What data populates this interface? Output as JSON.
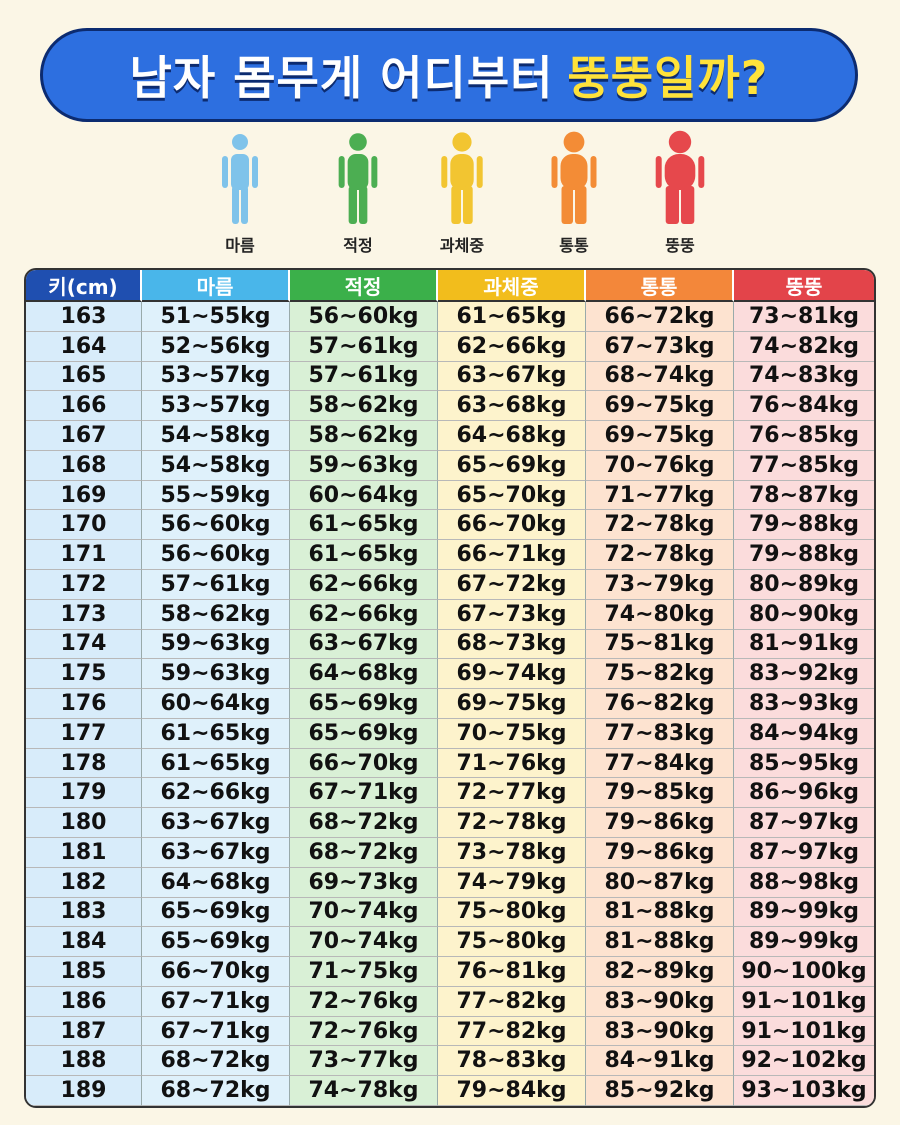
{
  "title": {
    "main": "남자 몸무게 어디부터",
    "highlight": "뚱뚱일까?"
  },
  "figures": [
    {
      "label": "마름",
      "color": "#7fc3ea"
    },
    {
      "label": "적정",
      "color": "#4cae52"
    },
    {
      "label": "과체중",
      "color": "#f2c531"
    },
    {
      "label": "통통",
      "color": "#f38c36"
    },
    {
      "label": "뚱뚱",
      "color": "#e6484c"
    }
  ],
  "table": {
    "headers": [
      "키(cm)",
      "마름",
      "적정",
      "과체중",
      "통통",
      "뚱뚱"
    ],
    "rows": [
      [
        "163",
        "51~55kg",
        "56~60kg",
        "61~65kg",
        "66~72kg",
        "73~81kg"
      ],
      [
        "164",
        "52~56kg",
        "57~61kg",
        "62~66kg",
        "67~73kg",
        "74~82kg"
      ],
      [
        "165",
        "53~57kg",
        "57~61kg",
        "63~67kg",
        "68~74kg",
        "74~83kg"
      ],
      [
        "166",
        "53~57kg",
        "58~62kg",
        "63~68kg",
        "69~75kg",
        "76~84kg"
      ],
      [
        "167",
        "54~58kg",
        "58~62kg",
        "64~68kg",
        "69~75kg",
        "76~85kg"
      ],
      [
        "168",
        "54~58kg",
        "59~63kg",
        "65~69kg",
        "70~76kg",
        "77~85kg"
      ],
      [
        "169",
        "55~59kg",
        "60~64kg",
        "65~70kg",
        "71~77kg",
        "78~87kg"
      ],
      [
        "170",
        "56~60kg",
        "61~65kg",
        "66~70kg",
        "72~78kg",
        "79~88kg"
      ],
      [
        "171",
        "56~60kg",
        "61~65kg",
        "66~71kg",
        "72~78kg",
        "79~88kg"
      ],
      [
        "172",
        "57~61kg",
        "62~66kg",
        "67~72kg",
        "73~79kg",
        "80~89kg"
      ],
      [
        "173",
        "58~62kg",
        "62~66kg",
        "67~73kg",
        "74~80kg",
        "80~90kg"
      ],
      [
        "174",
        "59~63kg",
        "63~67kg",
        "68~73kg",
        "75~81kg",
        "81~91kg"
      ],
      [
        "175",
        "59~63kg",
        "64~68kg",
        "69~74kg",
        "75~82kg",
        "83~92kg"
      ],
      [
        "176",
        "60~64kg",
        "65~69kg",
        "69~75kg",
        "76~82kg",
        "83~93kg"
      ],
      [
        "177",
        "61~65kg",
        "65~69kg",
        "70~75kg",
        "77~83kg",
        "84~94kg"
      ],
      [
        "178",
        "61~65kg",
        "66~70kg",
        "71~76kg",
        "77~84kg",
        "85~95kg"
      ],
      [
        "179",
        "62~66kg",
        "67~71kg",
        "72~77kg",
        "79~85kg",
        "86~96kg"
      ],
      [
        "180",
        "63~67kg",
        "68~72kg",
        "72~78kg",
        "79~86kg",
        "87~97kg"
      ],
      [
        "181",
        "63~67kg",
        "68~72kg",
        "73~78kg",
        "79~86kg",
        "87~97kg"
      ],
      [
        "182",
        "64~68kg",
        "69~73kg",
        "74~79kg",
        "80~87kg",
        "88~98kg"
      ],
      [
        "183",
        "65~69kg",
        "70~74kg",
        "75~80kg",
        "81~88kg",
        "89~99kg"
      ],
      [
        "184",
        "65~69kg",
        "70~74kg",
        "75~80kg",
        "81~88kg",
        "89~99kg"
      ],
      [
        "185",
        "66~70kg",
        "71~75kg",
        "76~81kg",
        "82~89kg",
        "90~100kg"
      ],
      [
        "186",
        "67~71kg",
        "72~76kg",
        "77~82kg",
        "83~90kg",
        "91~101kg"
      ],
      [
        "187",
        "67~71kg",
        "72~76kg",
        "77~82kg",
        "83~90kg",
        "91~101kg"
      ],
      [
        "188",
        "68~72kg",
        "73~77kg",
        "78~83kg",
        "84~91kg",
        "92~102kg"
      ],
      [
        "189",
        "68~72kg",
        "74~78kg",
        "79~84kg",
        "85~92kg",
        "93~103kg"
      ]
    ]
  }
}
